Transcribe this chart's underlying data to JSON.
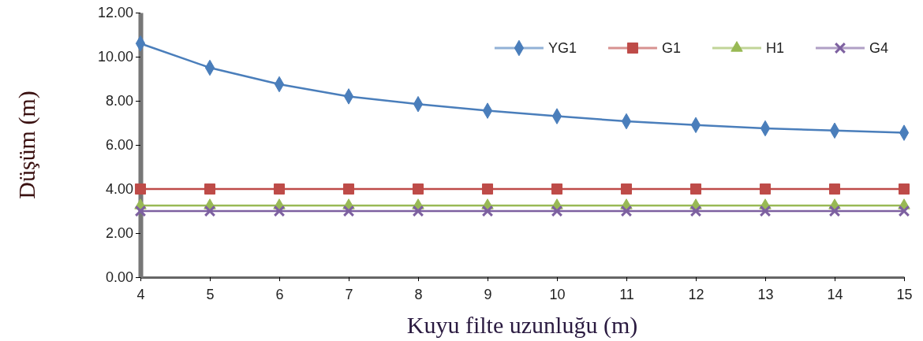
{
  "chart_data": {
    "type": "line",
    "xlabel": "Kuyu filte uzunluğu (m)",
    "ylabel": "Düşüm (m)",
    "x": [
      4,
      5,
      6,
      7,
      8,
      9,
      10,
      11,
      12,
      13,
      14,
      15
    ],
    "xlim": [
      4,
      15
    ],
    "xticks": [
      4,
      5,
      6,
      7,
      8,
      9,
      10,
      11,
      12,
      13,
      14,
      15
    ],
    "ylim": [
      0,
      12
    ],
    "yticks": [
      {
        "value": 0,
        "label": "0.00"
      },
      {
        "value": 2,
        "label": "2.00"
      },
      {
        "value": 4,
        "label": "4.00"
      },
      {
        "value": 6,
        "label": "6.00"
      },
      {
        "value": 8,
        "label": "8.00"
      },
      {
        "value": 10,
        "label": "10.00"
      },
      {
        "value": 12,
        "label": "12.00"
      }
    ],
    "grid": false,
    "legend": "top right",
    "line_style": "solid",
    "series": [
      {
        "name": "YG1",
        "color": "#4a7ebb",
        "marker": "diamond",
        "values": [
          10.6,
          9.5,
          8.75,
          8.2,
          7.85,
          7.55,
          7.3,
          7.07,
          6.9,
          6.75,
          6.65,
          6.55
        ]
      },
      {
        "name": "G1",
        "color": "#be4b48",
        "marker": "square",
        "values": [
          4,
          4,
          4,
          4,
          4,
          4,
          4,
          4,
          4,
          4,
          4,
          4
        ]
      },
      {
        "name": "H1",
        "color": "#98b954",
        "marker": "triangle",
        "values": [
          3.25,
          3.25,
          3.25,
          3.25,
          3.25,
          3.25,
          3.25,
          3.25,
          3.25,
          3.25,
          3.25,
          3.25
        ]
      },
      {
        "name": "G4",
        "color": "#7d60a0",
        "marker": "cross",
        "values": [
          3,
          3,
          3,
          3,
          3,
          3,
          3,
          3,
          3,
          3,
          3,
          3
        ]
      }
    ]
  }
}
